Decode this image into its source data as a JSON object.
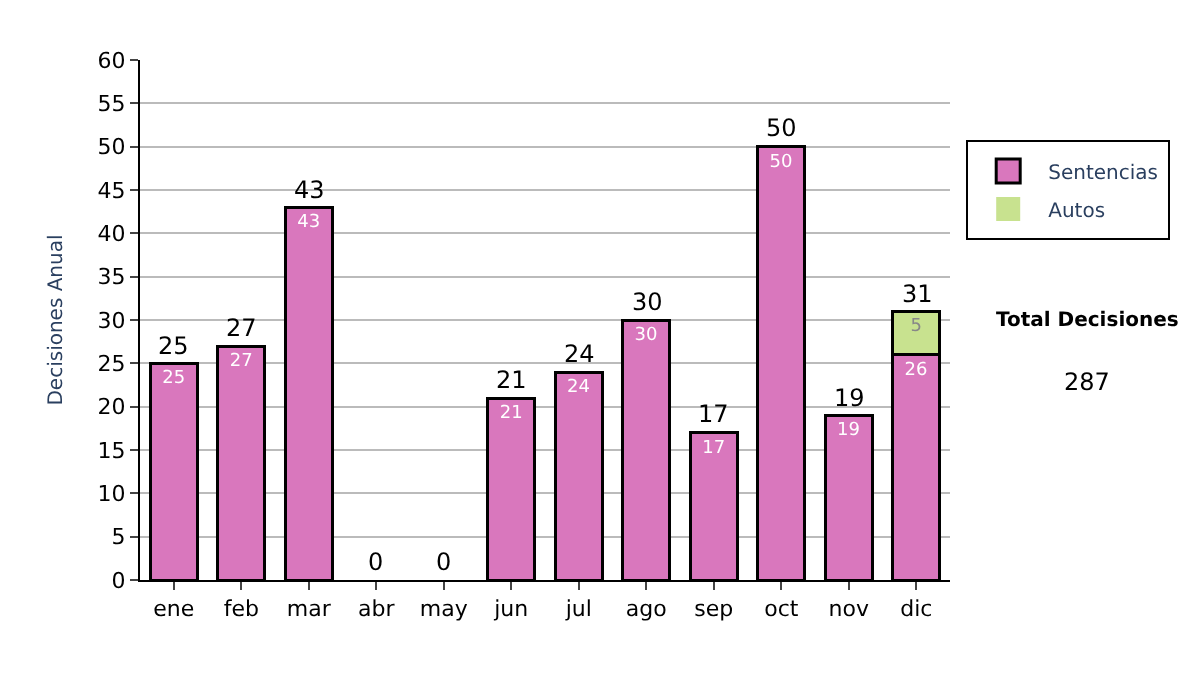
{
  "chart_data": {
    "type": "bar",
    "stacked": true,
    "ylabel": "Decisiones Anual",
    "categories": [
      "ene",
      "feb",
      "mar",
      "abr",
      "may",
      "jun",
      "jul",
      "ago",
      "sep",
      "oct",
      "nov",
      "dic"
    ],
    "series": [
      {
        "name": "Sentencias",
        "color": "#d977bd",
        "values": [
          25,
          27,
          43,
          0,
          0,
          21,
          24,
          30,
          17,
          50,
          19,
          26
        ],
        "value_labels": [
          "25",
          "27",
          "43",
          null,
          null,
          "21",
          "24",
          "30",
          "17",
          "50",
          "19",
          "26"
        ]
      },
      {
        "name": "Autos",
        "color": "#c8e28f",
        "values": [
          0,
          0,
          0,
          0,
          0,
          0,
          0,
          0,
          0,
          0,
          0,
          5
        ],
        "value_labels": [
          null,
          null,
          null,
          null,
          null,
          null,
          null,
          null,
          null,
          null,
          null,
          "5"
        ]
      }
    ],
    "totals": [
      "25",
      "27",
      "43",
      "0",
      "0",
      "21",
      "24",
      "30",
      "17",
      "50",
      "19",
      "31"
    ],
    "ylim": [
      0,
      60
    ],
    "yticks": [
      0,
      5,
      10,
      15,
      20,
      25,
      30,
      35,
      40,
      45,
      50,
      55,
      60
    ],
    "grid": "y",
    "legend": "right",
    "annotations": [
      "Total Decisiones",
      "287"
    ]
  }
}
